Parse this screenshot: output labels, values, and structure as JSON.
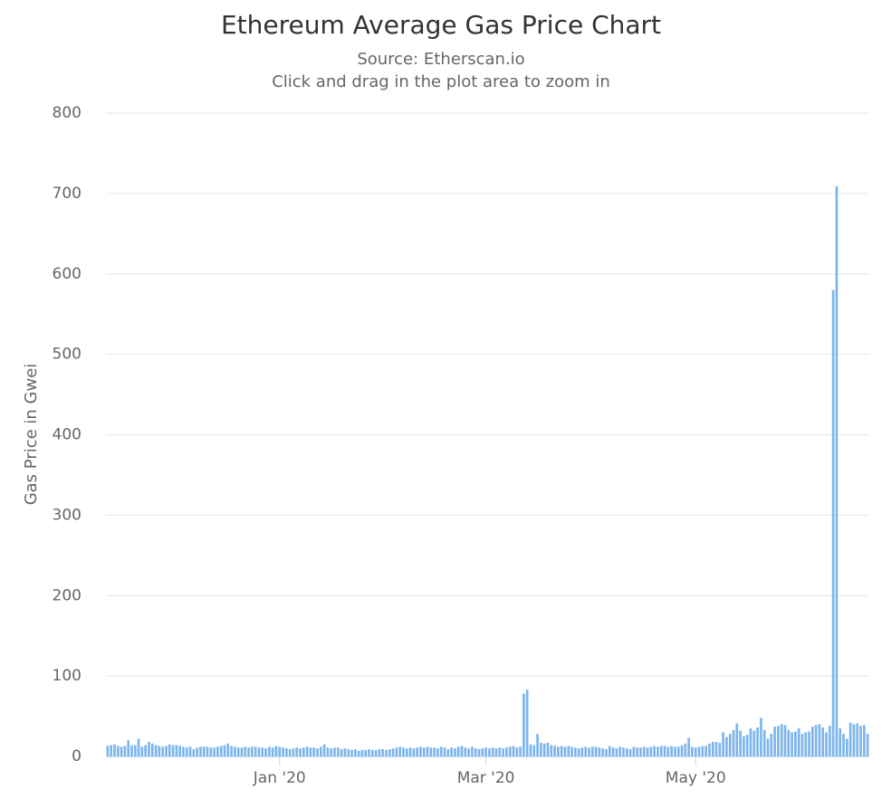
{
  "chart_data": {
    "type": "bar",
    "title": "Ethereum Average Gas Price Chart",
    "subtitle": [
      "Source: Etherscan.io",
      "Click and drag in the plot area to zoom in"
    ],
    "y_label": "Gas Price in Gwei",
    "color": "#7cb5ec",
    "grid": true,
    "ylim": [
      0,
      800
    ],
    "yticks": [
      0,
      100,
      200,
      300,
      400,
      500,
      600,
      700,
      800
    ],
    "categories": [
      null,
      null,
      null,
      null,
      null,
      null,
      null,
      null,
      null,
      null,
      null,
      null,
      null,
      null,
      null,
      null,
      null,
      null,
      null,
      null,
      null,
      null,
      null,
      null,
      null,
      null,
      null,
      null,
      null,
      null,
      null,
      null,
      null,
      null,
      null,
      null,
      null,
      null,
      null,
      null,
      null,
      null,
      null,
      null,
      null,
      null,
      null,
      null,
      null,
      null,
      "Jan '20",
      null,
      null,
      null,
      null,
      null,
      null,
      null,
      null,
      null,
      null,
      null,
      null,
      null,
      null,
      null,
      null,
      null,
      null,
      null,
      null,
      null,
      null,
      null,
      null,
      null,
      null,
      null,
      null,
      null,
      null,
      null,
      null,
      null,
      null,
      null,
      null,
      null,
      null,
      null,
      null,
      null,
      null,
      null,
      null,
      null,
      null,
      null,
      null,
      null,
      null,
      null,
      null,
      null,
      null,
      null,
      null,
      null,
      null,
      null,
      "Mar '20",
      null,
      null,
      null,
      null,
      null,
      null,
      null,
      null,
      null,
      null,
      null,
      null,
      null,
      null,
      null,
      null,
      null,
      null,
      null,
      null,
      null,
      null,
      null,
      null,
      null,
      null,
      null,
      null,
      null,
      null,
      null,
      null,
      null,
      null,
      null,
      null,
      null,
      null,
      null,
      null,
      null,
      null,
      null,
      null,
      null,
      null,
      null,
      null,
      null,
      null,
      null,
      null,
      null,
      null,
      null,
      null,
      null,
      null,
      null,
      null,
      "May '20",
      null,
      null,
      null,
      null,
      null,
      null,
      null,
      null,
      null,
      null,
      null,
      null,
      null,
      null,
      null,
      null,
      null,
      null,
      null,
      null,
      null,
      null,
      null,
      null,
      null,
      null,
      null,
      null,
      null,
      null,
      null,
      null,
      null,
      null,
      null,
      null,
      null,
      null,
      null,
      null,
      null,
      null,
      null,
      null,
      null,
      null,
      null,
      null,
      null,
      null
    ],
    "values": [
      13,
      14,
      15,
      13,
      12,
      13,
      20,
      14,
      14,
      22,
      12,
      14,
      18,
      16,
      14,
      13,
      12,
      13,
      15,
      14,
      14,
      13,
      12,
      11,
      12,
      9,
      11,
      12,
      12,
      12,
      11,
      11,
      12,
      13,
      14,
      16,
      13,
      12,
      11,
      11,
      12,
      11,
      12,
      12,
      11,
      11,
      10,
      12,
      11,
      13,
      12,
      11,
      10,
      9,
      10,
      11,
      10,
      11,
      12,
      11,
      11,
      10,
      12,
      15,
      11,
      10,
      11,
      11,
      9,
      10,
      9,
      8,
      9,
      7,
      8,
      8,
      9,
      8,
      8,
      9,
      9,
      8,
      9,
      10,
      11,
      12,
      11,
      10,
      11,
      10,
      11,
      12,
      11,
      12,
      11,
      11,
      10,
      12,
      11,
      9,
      11,
      10,
      12,
      13,
      11,
      10,
      12,
      10,
      9,
      10,
      11,
      10,
      11,
      10,
      11,
      10,
      11,
      12,
      13,
      11,
      12,
      78,
      83,
      15,
      14,
      28,
      17,
      16,
      17,
      14,
      13,
      12,
      13,
      12,
      13,
      12,
      11,
      10,
      11,
      12,
      11,
      12,
      12,
      11,
      10,
      9,
      13,
      11,
      10,
      12,
      11,
      10,
      9,
      12,
      11,
      11,
      12,
      11,
      12,
      13,
      12,
      13,
      13,
      12,
      13,
      12,
      12,
      14,
      16,
      23,
      12,
      11,
      12,
      13,
      13,
      16,
      18,
      18,
      17,
      30,
      24,
      28,
      33,
      41,
      32,
      25,
      27,
      35,
      32,
      36,
      48,
      33,
      22,
      28,
      37,
      38,
      40,
      39,
      33,
      30,
      31,
      35,
      28,
      30,
      31,
      37,
      39,
      40,
      36,
      30,
      38,
      580,
      709,
      35,
      28,
      22,
      42,
      40,
      41,
      38,
      39,
      28
    ]
  }
}
